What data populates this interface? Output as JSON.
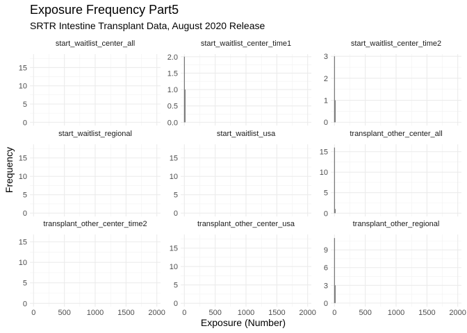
{
  "chart_data": {
    "type": "bar",
    "title": "Exposure Frequency Part5",
    "subtitle": "SRTR Intestine Transplant Data, August 2020 Release",
    "xlabel": "Exposure (Number)",
    "ylabel": "Frequency",
    "grid": true,
    "x_ticks": [
      0,
      500,
      1000,
      1500,
      2000
    ],
    "xlim": [
      -60,
      2060
    ],
    "facets": [
      {
        "name": "start_waitlist_center_all",
        "ylim": [
          -0.9,
          18.7
        ],
        "y_ticks": [
          0,
          5,
          10,
          15
        ],
        "y_tick_labels": [
          "0",
          "5",
          "10",
          "15"
        ],
        "bars": []
      },
      {
        "name": "start_waitlist_center_time1",
        "ylim": [
          -0.1,
          2.08
        ],
        "y_ticks": [
          0,
          0.5,
          1,
          1.5,
          2
        ],
        "y_tick_labels": [
          "0.0",
          "0.5",
          "1.0",
          "1.5",
          "2.0"
        ],
        "bars": [
          {
            "x": 0,
            "y": 2
          },
          {
            "x": 10,
            "y": 1
          }
        ]
      },
      {
        "name": "start_waitlist_center_time2",
        "ylim": [
          -0.15,
          3.1
        ],
        "y_ticks": [
          0,
          1,
          2,
          3
        ],
        "y_tick_labels": [
          "0",
          "1",
          "2",
          "3"
        ],
        "bars": [
          {
            "x": 0,
            "y": 3
          },
          {
            "x": 10,
            "y": 1
          }
        ]
      },
      {
        "name": "start_waitlist_regional",
        "ylim": [
          -0.9,
          18.7
        ],
        "y_ticks": [
          0,
          5,
          10,
          15
        ],
        "y_tick_labels": [
          "0",
          "5",
          "10",
          "15"
        ],
        "bars": []
      },
      {
        "name": "start_waitlist_usa",
        "ylim": [
          -0.9,
          18.7
        ],
        "y_ticks": [
          0,
          5,
          10,
          15
        ],
        "y_tick_labels": [
          "0",
          "5",
          "10",
          "15"
        ],
        "bars": []
      },
      {
        "name": "transplant_other_center_all",
        "ylim": [
          -0.8,
          16.8
        ],
        "y_ticks": [
          0,
          5,
          10,
          15
        ],
        "y_tick_labels": [
          "0",
          "5",
          "10",
          "15"
        ],
        "bars": [
          {
            "x": 0,
            "y": 16
          },
          {
            "x": 10,
            "y": 1
          }
        ]
      },
      {
        "name": "transplant_other_center_time2",
        "ylim": [
          -0.8,
          16.8
        ],
        "y_ticks": [
          0,
          5,
          10,
          15
        ],
        "y_tick_labels": [
          "0",
          "5",
          "10",
          "15"
        ],
        "bars": []
      },
      {
        "name": "transplant_other_center_usa",
        "ylim": [
          -0.9,
          18.7
        ],
        "y_ticks": [
          0,
          5,
          10,
          15
        ],
        "y_tick_labels": [
          "0",
          "5",
          "10",
          "15"
        ],
        "bars": []
      },
      {
        "name": "transplant_other_regional",
        "ylim": [
          -0.6,
          11.6
        ],
        "y_ticks": [
          0,
          3,
          6,
          9
        ],
        "y_tick_labels": [
          "0",
          "3",
          "6",
          "9"
        ],
        "bars": [
          {
            "x": 0,
            "y": 11
          },
          {
            "x": 10,
            "y": 3
          }
        ]
      }
    ]
  }
}
